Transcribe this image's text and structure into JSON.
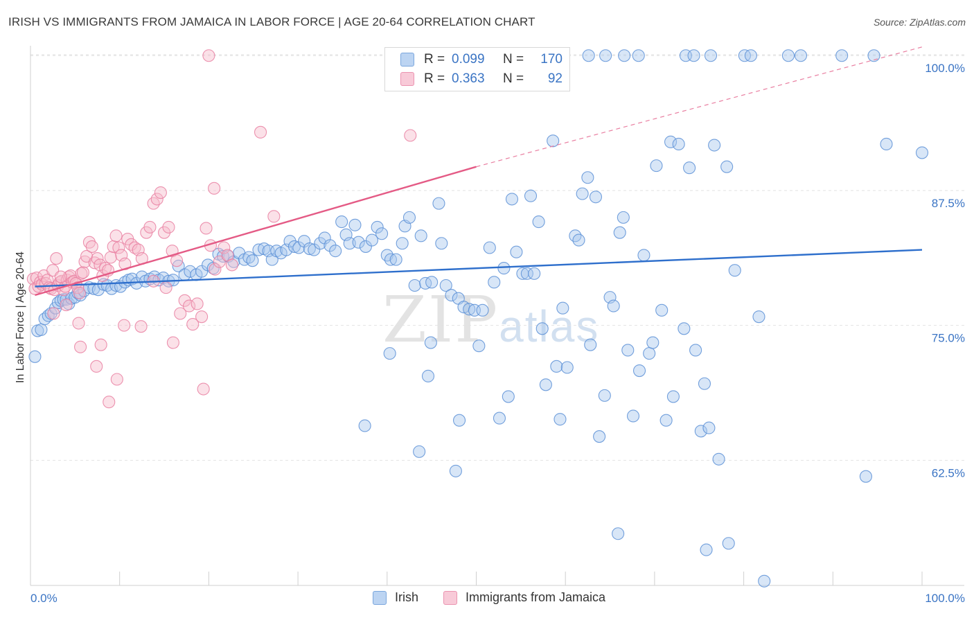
{
  "title": "IRISH VS IMMIGRANTS FROM JAMAICA IN LABOR FORCE | AGE 20-64 CORRELATION CHART",
  "source": "Source: ZipAtlas.com",
  "watermark": {
    "zip": "ZIP",
    "atlas": "atlas"
  },
  "legend": {
    "r_label": "R =",
    "n_label": "N =",
    "irish": {
      "r": "0.099",
      "n": "170"
    },
    "jamaica": {
      "r": "0.363",
      "n": "92"
    }
  },
  "colors": {
    "irish_fill": "#a9c8ee",
    "irish_stroke": "#5a8fd6",
    "irish_line": "#2e6fcc",
    "jamaica_fill": "#f6bccd",
    "jamaica_stroke": "#e97fa1",
    "jamaica_line": "#e45a85",
    "tick_label": "#3a74c4",
    "grid": "#e2e2e2"
  },
  "chart_data": {
    "type": "scatter",
    "title": "IRISH VS IMMIGRANTS FROM JAMAICA IN LABOR FORCE | AGE 20-64 CORRELATION CHART",
    "xlabel": "",
    "ylabel": "In Labor Force | Age 20-64",
    "xlim": [
      0,
      100
    ],
    "ylim": [
      50.9,
      101.3
    ],
    "x_tick_labels": [
      "0.0%",
      "100.0%"
    ],
    "y_ticks": [
      62.5,
      75.0,
      87.5,
      100.0
    ],
    "y_tick_labels": [
      "62.5%",
      "75.0%",
      "87.5%",
      "100.0%"
    ],
    "grid": true,
    "legend_position": "top-center",
    "series": [
      {
        "name": "Irish",
        "r": 0.099,
        "n": 170,
        "trend": [
          [
            0.5,
            78.6
          ],
          [
            100,
            82.0
          ]
        ],
        "points": [
          [
            0.5,
            72.1
          ],
          [
            0.8,
            74.5
          ],
          [
            1.2,
            74.6
          ],
          [
            1.6,
            75.6
          ],
          [
            2.0,
            75.9
          ],
          [
            2.3,
            76.1
          ],
          [
            2.8,
            76.6
          ],
          [
            3.1,
            77.1
          ],
          [
            3.4,
            77.3
          ],
          [
            3.7,
            77.4
          ],
          [
            4.0,
            77.4
          ],
          [
            4.3,
            77.0
          ],
          [
            4.6,
            77.5
          ],
          [
            5.0,
            77.6
          ],
          [
            5.3,
            78.0
          ],
          [
            5.6,
            77.8
          ],
          [
            6.0,
            78.2
          ],
          [
            6.6,
            78.5
          ],
          [
            7.1,
            78.4
          ],
          [
            7.6,
            78.3
          ],
          [
            8.2,
            78.8
          ],
          [
            8.6,
            78.7
          ],
          [
            9.1,
            78.4
          ],
          [
            9.6,
            78.7
          ],
          [
            10.1,
            78.6
          ],
          [
            10.6,
            79.0
          ],
          [
            11.0,
            79.2
          ],
          [
            11.4,
            79.3
          ],
          [
            11.9,
            78.9
          ],
          [
            12.5,
            79.5
          ],
          [
            12.9,
            79.1
          ],
          [
            13.4,
            79.3
          ],
          [
            13.9,
            79.5
          ],
          [
            14.4,
            79.2
          ],
          [
            14.9,
            79.4
          ],
          [
            15.5,
            79.1
          ],
          [
            16.0,
            79.2
          ],
          [
            16.6,
            80.5
          ],
          [
            17.3,
            79.7
          ],
          [
            17.9,
            80.0
          ],
          [
            18.6,
            79.7
          ],
          [
            19.2,
            80.0
          ],
          [
            19.9,
            80.6
          ],
          [
            20.5,
            80.3
          ],
          [
            21.1,
            81.6
          ],
          [
            21.6,
            81.4
          ],
          [
            22.2,
            81.4
          ],
          [
            22.8,
            80.9
          ],
          [
            23.4,
            81.7
          ],
          [
            24.0,
            81.1
          ],
          [
            24.5,
            81.3
          ],
          [
            24.9,
            81.0
          ],
          [
            25.6,
            82.0
          ],
          [
            26.2,
            82.1
          ],
          [
            26.7,
            81.9
          ],
          [
            27.1,
            81.1
          ],
          [
            27.6,
            81.9
          ],
          [
            28.1,
            81.7
          ],
          [
            28.7,
            82.0
          ],
          [
            29.1,
            82.8
          ],
          [
            29.6,
            82.3
          ],
          [
            30.1,
            82.2
          ],
          [
            30.7,
            82.8
          ],
          [
            31.3,
            82.1
          ],
          [
            31.8,
            82.0
          ],
          [
            32.5,
            82.6
          ],
          [
            33.0,
            83.1
          ],
          [
            33.6,
            82.4
          ],
          [
            34.2,
            81.9
          ],
          [
            34.9,
            84.6
          ],
          [
            35.4,
            83.4
          ],
          [
            35.8,
            82.6
          ],
          [
            36.4,
            84.3
          ],
          [
            36.8,
            82.7
          ],
          [
            37.6,
            82.3
          ],
          [
            38.3,
            82.9
          ],
          [
            38.9,
            84.1
          ],
          [
            39.4,
            83.5
          ],
          [
            40.0,
            81.5
          ],
          [
            40.4,
            81.1
          ],
          [
            41.0,
            81.1
          ],
          [
            41.7,
            82.6
          ],
          [
            42.0,
            84.2
          ],
          [
            42.5,
            85.0
          ],
          [
            43.1,
            78.7
          ],
          [
            43.8,
            83.3
          ],
          [
            44.3,
            78.9
          ],
          [
            45.0,
            79.0
          ],
          [
            45.8,
            86.3
          ],
          [
            46.1,
            82.6
          ],
          [
            46.6,
            78.7
          ],
          [
            47.2,
            77.8
          ],
          [
            48.0,
            77.5
          ],
          [
            48.6,
            76.7
          ],
          [
            49.2,
            76.5
          ],
          [
            49.8,
            76.4
          ],
          [
            50.3,
            73.1
          ],
          [
            50.7,
            76.4
          ],
          [
            51.5,
            82.2
          ],
          [
            52.0,
            79.0
          ],
          [
            52.6,
            66.4
          ],
          [
            53.1,
            80.3
          ],
          [
            53.6,
            68.4
          ],
          [
            54.0,
            86.7
          ],
          [
            54.5,
            81.8
          ],
          [
            55.2,
            79.8
          ],
          [
            55.7,
            79.8
          ],
          [
            56.1,
            87.0
          ],
          [
            56.5,
            79.8
          ],
          [
            57.0,
            84.6
          ],
          [
            57.4,
            74.7
          ],
          [
            57.8,
            69.5
          ],
          [
            58.6,
            92.1
          ],
          [
            59.0,
            71.2
          ],
          [
            59.4,
            66.3
          ],
          [
            59.7,
            76.6
          ],
          [
            60.2,
            71.1
          ],
          [
            61.1,
            83.3
          ],
          [
            61.5,
            82.9
          ],
          [
            61.9,
            87.2
          ],
          [
            62.5,
            88.7
          ],
          [
            62.8,
            73.2
          ],
          [
            63.4,
            86.9
          ],
          [
            63.8,
            64.7
          ],
          [
            64.4,
            68.5
          ],
          [
            65.0,
            77.6
          ],
          [
            65.4,
            76.8
          ],
          [
            66.1,
            83.6
          ],
          [
            66.5,
            85.0
          ],
          [
            67.0,
            72.7
          ],
          [
            67.6,
            66.6
          ],
          [
            68.3,
            70.8
          ],
          [
            68.8,
            81.5
          ],
          [
            69.4,
            72.4
          ],
          [
            69.8,
            73.4
          ],
          [
            70.2,
            89.8
          ],
          [
            70.8,
            76.4
          ],
          [
            71.3,
            66.2
          ],
          [
            71.8,
            92.0
          ],
          [
            72.1,
            68.4
          ],
          [
            72.7,
            91.8
          ],
          [
            73.3,
            74.7
          ],
          [
            73.9,
            89.6
          ],
          [
            74.6,
            72.7
          ],
          [
            75.2,
            65.2
          ],
          [
            75.6,
            69.6
          ],
          [
            76.1,
            65.5
          ],
          [
            76.7,
            91.7
          ],
          [
            77.2,
            62.6
          ],
          [
            78.1,
            89.7
          ],
          [
            79.0,
            80.1
          ],
          [
            80.1,
            100.0
          ],
          [
            80.8,
            100.0
          ],
          [
            81.7,
            75.8
          ],
          [
            82.3,
            51.3
          ],
          [
            85.0,
            100.0
          ],
          [
            86.4,
            100.0
          ],
          [
            91.0,
            100.0
          ],
          [
            93.7,
            61.0
          ],
          [
            94.6,
            100.0
          ],
          [
            96.0,
            91.8
          ],
          [
            100.0,
            91.0
          ],
          [
            78.3,
            54.8
          ],
          [
            75.8,
            54.2
          ],
          [
            65.9,
            55.7
          ],
          [
            73.5,
            100.0
          ],
          [
            68.2,
            100.0
          ],
          [
            66.6,
            100.0
          ],
          [
            62.6,
            100.0
          ],
          [
            64.5,
            100.0
          ],
          [
            58.7,
            100.0
          ],
          [
            76.3,
            100.0
          ],
          [
            74.4,
            100.0
          ],
          [
            57.3,
            97.7
          ],
          [
            40.3,
            72.4
          ],
          [
            37.5,
            65.7
          ],
          [
            44.9,
            73.4
          ],
          [
            47.7,
            61.5
          ],
          [
            43.6,
            63.3
          ],
          [
            48.1,
            66.2
          ],
          [
            44.6,
            70.3
          ]
        ]
      },
      {
        "name": "Immigrants from Jamaica",
        "r": 0.363,
        "n": 92,
        "trend": [
          [
            0.5,
            77.8
          ],
          [
            50.0,
            89.7
          ]
        ],
        "trend_extension": [
          [
            50.0,
            89.7
          ],
          [
            100.0,
            100.8
          ]
        ],
        "points": [
          [
            0.3,
            79.3
          ],
          [
            0.5,
            78.4
          ],
          [
            0.7,
            79.4
          ],
          [
            0.9,
            78.6
          ],
          [
            1.1,
            79.0
          ],
          [
            1.3,
            78.8
          ],
          [
            1.5,
            79.6
          ],
          [
            1.7,
            78.9
          ],
          [
            1.9,
            79.2
          ],
          [
            2.1,
            78.5
          ],
          [
            2.3,
            78.4
          ],
          [
            2.5,
            80.1
          ],
          [
            2.7,
            78.3
          ],
          [
            2.9,
            81.2
          ],
          [
            3.1,
            78.7
          ],
          [
            3.3,
            79.0
          ],
          [
            3.5,
            79.1
          ],
          [
            3.7,
            78.3
          ],
          [
            3.9,
            78.6
          ],
          [
            4.1,
            79.2
          ],
          [
            4.3,
            79.5
          ],
          [
            4.5,
            79.6
          ],
          [
            4.7,
            79.0
          ],
          [
            4.9,
            79.1
          ],
          [
            5.1,
            78.9
          ],
          [
            5.3,
            78.5
          ],
          [
            5.5,
            78.0
          ],
          [
            5.7,
            79.8
          ],
          [
            5.9,
            79.9
          ],
          [
            6.1,
            80.9
          ],
          [
            6.3,
            81.4
          ],
          [
            6.6,
            82.7
          ],
          [
            6.9,
            82.3
          ],
          [
            7.2,
            80.8
          ],
          [
            7.5,
            81.2
          ],
          [
            7.8,
            80.6
          ],
          [
            8.1,
            79.6
          ],
          [
            8.4,
            80.3
          ],
          [
            8.7,
            80.1
          ],
          [
            9.0,
            81.3
          ],
          [
            9.3,
            82.3
          ],
          [
            9.6,
            83.3
          ],
          [
            9.9,
            82.2
          ],
          [
            10.2,
            81.5
          ],
          [
            10.6,
            80.7
          ],
          [
            10.9,
            83.0
          ],
          [
            11.3,
            82.5
          ],
          [
            11.7,
            82.2
          ],
          [
            12.1,
            82.0
          ],
          [
            12.5,
            81.2
          ],
          [
            13.0,
            83.6
          ],
          [
            13.4,
            84.1
          ],
          [
            13.8,
            86.3
          ],
          [
            14.2,
            86.7
          ],
          [
            14.6,
            87.3
          ],
          [
            15.0,
            83.6
          ],
          [
            15.5,
            84.1
          ],
          [
            15.9,
            81.9
          ],
          [
            16.4,
            81.0
          ],
          [
            16.8,
            76.1
          ],
          [
            17.3,
            77.3
          ],
          [
            17.8,
            76.8
          ],
          [
            18.2,
            75.1
          ],
          [
            18.7,
            77.0
          ],
          [
            19.2,
            75.8
          ],
          [
            19.7,
            84.0
          ],
          [
            20.2,
            82.4
          ],
          [
            20.7,
            80.2
          ],
          [
            21.2,
            80.9
          ],
          [
            21.7,
            82.2
          ],
          [
            22.1,
            81.5
          ],
          [
            22.6,
            80.6
          ],
          [
            4.0,
            76.9
          ],
          [
            3.4,
            79.5
          ],
          [
            2.6,
            76.1
          ],
          [
            5.4,
            75.2
          ],
          [
            5.6,
            73.0
          ],
          [
            7.4,
            71.2
          ],
          [
            7.9,
            73.2
          ],
          [
            8.8,
            67.9
          ],
          [
            9.7,
            70.0
          ],
          [
            10.5,
            75.0
          ],
          [
            12.4,
            74.9
          ],
          [
            16.0,
            73.4
          ],
          [
            19.4,
            69.1
          ],
          [
            20.6,
            87.7
          ],
          [
            25.8,
            92.9
          ],
          [
            27.3,
            85.1
          ],
          [
            42.6,
            92.6
          ],
          [
            20.0,
            100.0
          ],
          [
            13.8,
            79.1
          ],
          [
            15.2,
            78.5
          ]
        ]
      }
    ]
  }
}
